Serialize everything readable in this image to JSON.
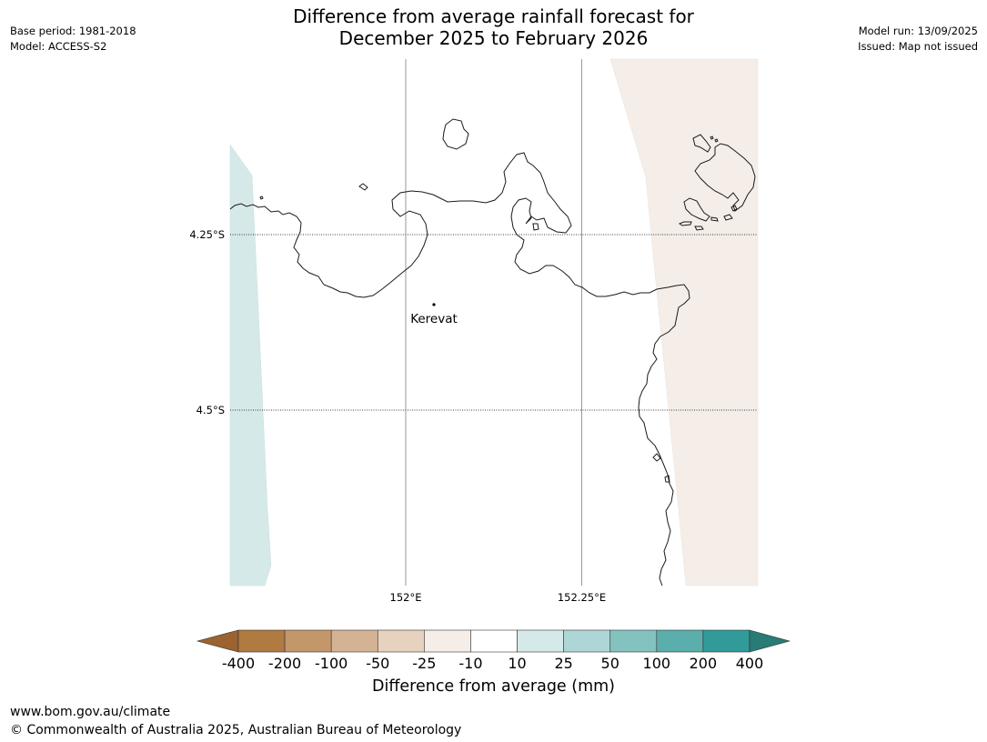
{
  "header": {
    "base_period": "Base period: 1981-2018",
    "model": "Model: ACCESS-S2",
    "model_run": "Model run: 13/09/2025",
    "issued": "Issued: Map not issued",
    "title_line1": "Difference from average rainfall forecast for",
    "title_line2": "December 2025 to February 2026"
  },
  "map": {
    "lat_labels": [
      "4.25°S",
      "4.5°S"
    ],
    "lon_labels": [
      "152°E",
      "152.25°E"
    ],
    "places": [
      {
        "name": "Kerevat"
      }
    ],
    "colors": {
      "wet_10_25": "#d6e9e9",
      "dry_neg25_neg10": "#f5eee8",
      "coast": "#1a1a1a",
      "graticule": "#808080"
    }
  },
  "colorbar": {
    "title": "Difference from average (mm)",
    "tick_labels": [
      "-400",
      "-200",
      "-100",
      "-50",
      "-25",
      "-10",
      "10",
      "25",
      "50",
      "100",
      "200",
      "400"
    ],
    "colors": [
      "#9a6330",
      "#b07a40",
      "#c4976b",
      "#d4b394",
      "#e6d2be",
      "#f5eee8",
      "#ffffff",
      "#d6e9e9",
      "#aed6d6",
      "#84c2bf",
      "#5aaeab",
      "#309b98",
      "#287b77"
    ]
  },
  "footer": {
    "url": "www.bom.gov.au/climate",
    "copyright": "© Commonwealth of Australia 2025, Australian Bureau of Meteorology"
  }
}
